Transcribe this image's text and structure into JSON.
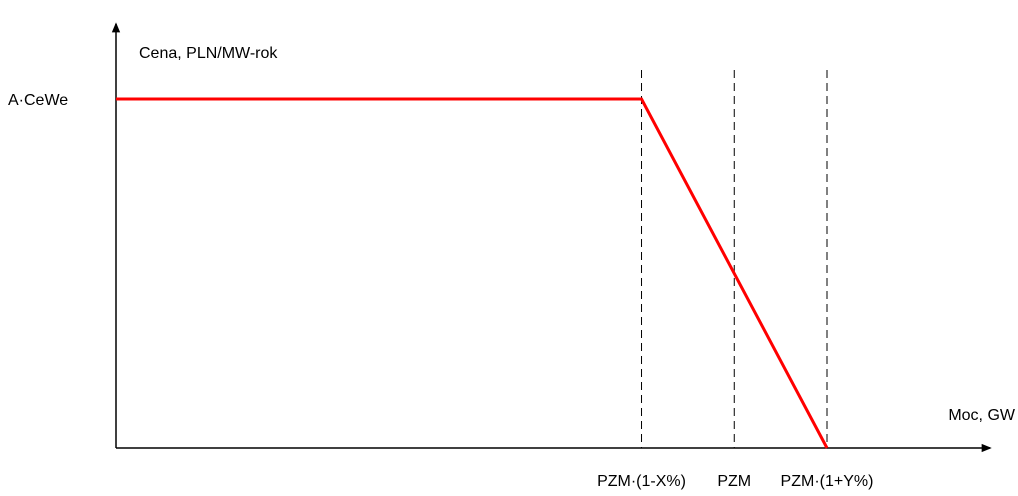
{
  "chart_data": {
    "type": "line",
    "ylabel": "Cena, PLN/MW-rok",
    "xlabel": "Moc, GW",
    "y_ticks": [
      {
        "label": "A·CeWe",
        "value": 1.0
      }
    ],
    "x_ticks": [
      {
        "label": "PZM·(1-X%)",
        "value": 0.85
      },
      {
        "label": "PZM",
        "value": 1.0
      },
      {
        "label": "PZM·(1+Y%)",
        "value": 1.15
      }
    ],
    "series": [
      {
        "color": "#ff0000",
        "x": [
          0,
          0.85,
          1.15
        ],
        "y": [
          1.0,
          1.0,
          0
        ]
      }
    ],
    "vertical_lines": [
      0.85,
      1.0,
      1.15
    ],
    "vertical_line_style": "dashed",
    "xlim": [
      0,
      1.15
    ],
    "ylim": [
      0,
      1.0
    ],
    "grid": false,
    "axis_arrows": true,
    "colors": {
      "curve": "#ff0000",
      "axes": "#000000",
      "guides": "#000000"
    }
  }
}
